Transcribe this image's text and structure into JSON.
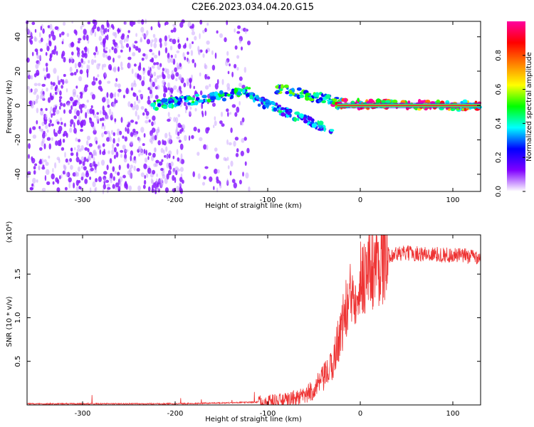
{
  "title": "C2E6.2023.034.04.20.G15",
  "chart_data": [
    {
      "type": "heatmap",
      "xlabel": "Height of straight line (km)",
      "ylabel": "Frequency (Hz)",
      "xlim": [
        -360,
        130
      ],
      "ylim": [
        -50,
        49
      ],
      "xticks": [
        -300,
        -200,
        -100,
        0,
        100
      ],
      "yticks": [
        -40,
        -20,
        0,
        20,
        40
      ],
      "colorbar": {
        "label": "Normalized spectral amplitude",
        "range": [
          0,
          1
        ],
        "ticks": [
          "0.0",
          "0.2",
          "0.4",
          "0.6",
          "0.8"
        ],
        "colors": [
          "#ffffff",
          "#8000ff",
          "#0000ff",
          "#00ffff",
          "#00ff00",
          "#ffff00",
          "#ff8000",
          "#ff0000",
          "#ff00a0"
        ]
      },
      "features": {
        "noise_region": {
          "x_range": [
            -360,
            -120
          ],
          "y_range": [
            -50,
            49
          ],
          "amplitude": 0.05
        },
        "signal_branches": [
          {
            "from": [
              -225,
              0
            ],
            "to": [
              -120,
              8
            ],
            "amplitude": 0.4
          },
          {
            "from": [
              -120,
              5
            ],
            "to": [
              -30,
              -15
            ],
            "amplitude": 0.35
          },
          {
            "from": [
              -90,
              10
            ],
            "to": [
              -20,
              2
            ],
            "amplitude": 0.45
          },
          {
            "from": [
              -30,
              1
            ],
            "to": [
              130,
              0
            ],
            "amplitude": 0.85
          }
        ]
      }
    },
    {
      "type": "line",
      "xlabel": "Height of straight line (km)",
      "ylabel": "SNR (10 * v/v)",
      "yscale_label": "(x10⁴)",
      "xlim": [
        -360,
        130
      ],
      "ylim": [
        0,
        1.95
      ],
      "xticks": [
        -300,
        -200,
        -100,
        0,
        100
      ],
      "yticks": [
        "0.5",
        "1.0",
        "1.5"
      ],
      "series": [
        {
          "color": "#ee3333",
          "x": [
            -360,
            -200,
            -150,
            -110,
            -80,
            -60,
            -50,
            -40,
            -30,
            -25,
            -20,
            -15,
            -10,
            -5,
            0,
            10,
            20,
            30,
            50,
            70,
            90,
            110,
            130
          ],
          "y": [
            0.01,
            0.01,
            0.02,
            0.03,
            0.05,
            0.1,
            0.18,
            0.3,
            0.45,
            0.7,
            0.9,
            1.1,
            1.25,
            1.35,
            1.45,
            1.55,
            1.65,
            1.72,
            1.74,
            1.73,
            1.72,
            1.71,
            1.7
          ]
        }
      ]
    }
  ]
}
